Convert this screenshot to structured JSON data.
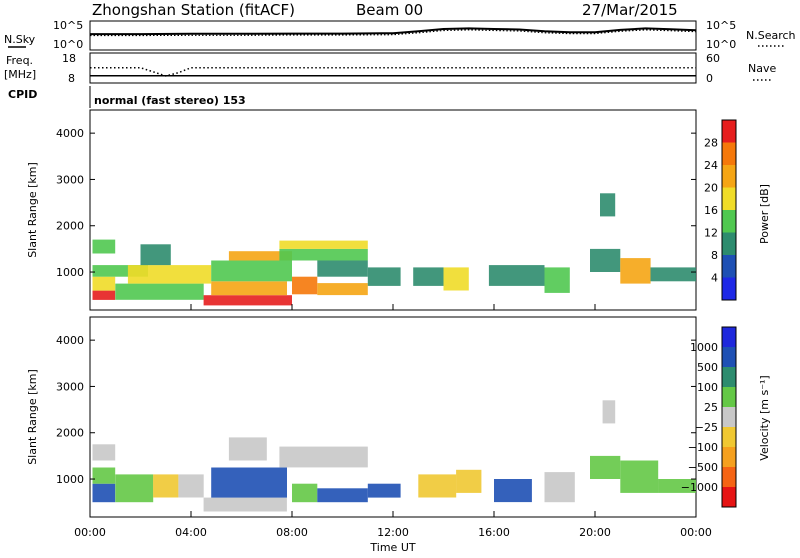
{
  "header": {
    "station": "Zhongshan Station (fitACF)",
    "beam": "Beam 00",
    "date": "27/Mar/2015"
  },
  "top_panels": {
    "nsky_label": "N.Sky",
    "nsky_ticks": [
      "10^5",
      "10^0"
    ],
    "nsearch_label": "N.Search",
    "nsearch_ticks": [
      "10^5",
      "10^0"
    ],
    "freq_label_1": "Freq.",
    "freq_label_2": "[MHz]",
    "freq_ticks": [
      "18",
      "8"
    ],
    "nave_label": "Nave",
    "nave_ticks": [
      "60",
      "0"
    ],
    "cpid_label": "CPID",
    "cpid_text": "normal (fast stereo) 153"
  },
  "x_axis": {
    "label": "Time UT",
    "ticks": [
      "00:00",
      "04:00",
      "08:00",
      "12:00",
      "16:00",
      "20:00",
      "00:00"
    ],
    "hours": [
      0,
      4,
      8,
      12,
      16,
      20,
      24
    ]
  },
  "colors": {
    "frame": "#000000",
    "power_scale": [
      "#1e28e6",
      "#1e50b4",
      "#2d8c6e",
      "#50c850",
      "#f0dc28",
      "#f5a514",
      "#f5780a",
      "#e61e1e"
    ],
    "velocity_scale": [
      "#e61414",
      "#f56414",
      "#f5a01e",
      "#f0c832",
      "#c8c8c8",
      "#64c846",
      "#2d8c6e",
      "#1e50b4",
      "#1e28dc"
    ]
  },
  "chart_data": [
    {
      "type": "line",
      "panel": "N.Sky / N.Search",
      "ylabel": "N.Sky",
      "y2label": "N.Search",
      "yscale": "log",
      "x_hours": [
        0,
        2,
        4,
        6,
        8,
        10,
        12,
        13,
        14,
        15,
        16,
        17,
        18,
        19,
        20,
        21,
        22,
        23,
        24
      ],
      "series": [
        {
          "values": [
            800,
            800,
            900,
            900,
            1000,
            1000,
            1200,
            3000,
            9000,
            12000,
            9000,
            7000,
            3000,
            2000,
            2000,
            6000,
            12000,
            8000,
            5000
          ]
        },
        {
          "values": [
            400,
            400,
            450,
            450,
            500,
            500,
            600,
            1500,
            4500,
            6000,
            4500,
            3500,
            1500,
            1000,
            1000,
            3000,
            6000,
            4000,
            2500
          ]
        }
      ]
    },
    {
      "type": "scatter",
      "panel": "Freq / Nave",
      "ylabel": "Freq. [MHz]",
      "y2label": "Nave",
      "ylim": [
        8,
        18
      ],
      "y2lim": [
        0,
        60
      ],
      "x_hours": [
        0,
        2,
        2.5,
        3,
        3.5,
        4,
        8,
        12,
        16,
        20,
        24
      ],
      "series": [
        {
          "values": [
            10.1,
            10.1,
            10.1,
            10.1,
            10.1,
            10.1,
            10.1,
            10.1,
            10.1,
            10.1,
            10.1
          ]
        },
        {
          "values": [
            32,
            32,
            22,
            12,
            20,
            32,
            32,
            32,
            32,
            32,
            32
          ]
        }
      ]
    },
    {
      "type": "heatmap",
      "title": "",
      "ylabel": "Slant Range [km]",
      "ylim": [
        180,
        4500
      ],
      "y_ticks": [
        "1000",
        "2000",
        "3000",
        "4000"
      ],
      "xlim": [
        0,
        24
      ],
      "colorbar_label": "Power [dB]",
      "colorbar_ticks": [
        "4",
        "8",
        "12",
        "16",
        "20",
        "24",
        "28"
      ],
      "colorbar_range": [
        0,
        32
      ],
      "blocks": [
        {
          "h": [
            0.1,
            1.0
          ],
          "r": [
            400,
            600
          ],
          "v": 28
        },
        {
          "h": [
            0.1,
            1.0
          ],
          "r": [
            600,
            900
          ],
          "v": 18
        },
        {
          "h": [
            0.1,
            2.3
          ],
          "r": [
            900,
            1150
          ],
          "v": 12
        },
        {
          "h": [
            0.1,
            1.0
          ],
          "r": [
            1400,
            1700
          ],
          "v": 14
        },
        {
          "h": [
            1.0,
            4.5
          ],
          "r": [
            400,
            750
          ],
          "v": 12
        },
        {
          "h": [
            1.5,
            4.8
          ],
          "r": [
            750,
            1150
          ],
          "v": 16
        },
        {
          "h": [
            2.0,
            3.2
          ],
          "r": [
            1150,
            1600
          ],
          "v": 10
        },
        {
          "h": [
            4.5,
            8.0
          ],
          "r": [
            280,
            500
          ],
          "v": 28
        },
        {
          "h": [
            4.8,
            7.8
          ],
          "r": [
            500,
            800
          ],
          "v": 22
        },
        {
          "h": [
            4.8,
            8.0
          ],
          "r": [
            800,
            1250
          ],
          "v": 14
        },
        {
          "h": [
            5.5,
            8.0
          ],
          "r": [
            1250,
            1450
          ],
          "v": 20
        },
        {
          "h": [
            8.0,
            9.0
          ],
          "r": [
            520,
            900
          ],
          "v": 26
        },
        {
          "h": [
            9.0,
            11.0
          ],
          "r": [
            500,
            760
          ],
          "v": 20
        },
        {
          "h": [
            9.0,
            11.0
          ],
          "r": [
            900,
            1250
          ],
          "v": 8
        },
        {
          "h": [
            7.5,
            11.0
          ],
          "r": [
            1250,
            1500
          ],
          "v": 12
        },
        {
          "h": [
            7.5,
            11.0
          ],
          "r": [
            1500,
            1680
          ],
          "v": 16
        },
        {
          "h": [
            11.0,
            12.3
          ],
          "r": [
            700,
            1100
          ],
          "v": 10
        },
        {
          "h": [
            12.8,
            14.0
          ],
          "r": [
            700,
            1100
          ],
          "v": 10
        },
        {
          "h": [
            14.0,
            15.0
          ],
          "r": [
            600,
            1100
          ],
          "v": 18
        },
        {
          "h": [
            15.8,
            18.0
          ],
          "r": [
            700,
            1150
          ],
          "v": 8
        },
        {
          "h": [
            18.0,
            19.0
          ],
          "r": [
            550,
            1100
          ],
          "v": 12
        },
        {
          "h": [
            19.8,
            21.0
          ],
          "r": [
            1000,
            1500
          ],
          "v": 8
        },
        {
          "h": [
            20.2,
            20.8
          ],
          "r": [
            2200,
            2700
          ],
          "v": 8
        },
        {
          "h": [
            21.0,
            22.2
          ],
          "r": [
            750,
            1300
          ],
          "v": 20
        },
        {
          "h": [
            22.2,
            24.0
          ],
          "r": [
            800,
            1100
          ],
          "v": 8
        }
      ]
    },
    {
      "type": "heatmap",
      "title": "",
      "ylabel": "Slant Range [km]",
      "ylim": [
        180,
        4500
      ],
      "y_ticks": [
        "1000",
        "2000",
        "3000",
        "4000"
      ],
      "xlim": [
        0,
        24
      ],
      "colorbar_label": "Velocity [m s⁻¹]",
      "colorbar_ticks": [
        "1000",
        "500",
        "100",
        "25",
        "−25",
        "−100",
        "−500",
        "−1000"
      ],
      "colorbar_range": [
        -1250,
        1250
      ],
      "blocks": [
        {
          "h": [
            0.1,
            1.0
          ],
          "r": [
            500,
            900
          ],
          "v": 800
        },
        {
          "h": [
            0.1,
            1.0
          ],
          "r": [
            900,
            1250
          ],
          "v": 200
        },
        {
          "h": [
            0.1,
            1.0
          ],
          "r": [
            1400,
            1750
          ],
          "v": -60
        },
        {
          "h": [
            1.0,
            2.5
          ],
          "r": [
            500,
            1100
          ],
          "v": 150
        },
        {
          "h": [
            2.5,
            3.5
          ],
          "r": [
            600,
            1100
          ],
          "v": -300
        },
        {
          "h": [
            3.5,
            4.5
          ],
          "r": [
            600,
            1100
          ],
          "v": 120
        },
        {
          "h": [
            4.5,
            7.8
          ],
          "r": [
            300,
            600
          ],
          "v": 60
        },
        {
          "h": [
            4.8,
            7.8
          ],
          "r": [
            600,
            1250
          ],
          "v": 900
        },
        {
          "h": [
            5.5,
            7.0
          ],
          "r": [
            1400,
            1900
          ],
          "v": 60
        },
        {
          "h": [
            8.0,
            9.0
          ],
          "r": [
            500,
            900
          ],
          "v": 200
        },
        {
          "h": [
            9.0,
            11.0
          ],
          "r": [
            500,
            800
          ],
          "v": 800
        },
        {
          "h": [
            7.5,
            11.0
          ],
          "r": [
            1250,
            1700
          ],
          "v": 0
        },
        {
          "h": [
            11.0,
            12.3
          ],
          "r": [
            600,
            900
          ],
          "v": 800
        },
        {
          "h": [
            13.0,
            14.5
          ],
          "r": [
            600,
            1100
          ],
          "v": -400
        },
        {
          "h": [
            14.5,
            15.5
          ],
          "r": [
            700,
            1200
          ],
          "v": -200
        },
        {
          "h": [
            16.0,
            17.5
          ],
          "r": [
            500,
            1000
          ],
          "v": 800
        },
        {
          "h": [
            18.0,
            19.2
          ],
          "r": [
            500,
            1150
          ],
          "v": 0
        },
        {
          "h": [
            19.8,
            21.0
          ],
          "r": [
            1000,
            1500
          ],
          "v": 300
        },
        {
          "h": [
            20.3,
            20.8
          ],
          "r": [
            2200,
            2700
          ],
          "v": 0
        },
        {
          "h": [
            21.0,
            22.5
          ],
          "r": [
            700,
            1400
          ],
          "v": 300
        },
        {
          "h": [
            22.5,
            24.0
          ],
          "r": [
            700,
            1000
          ],
          "v": 200
        }
      ]
    }
  ]
}
